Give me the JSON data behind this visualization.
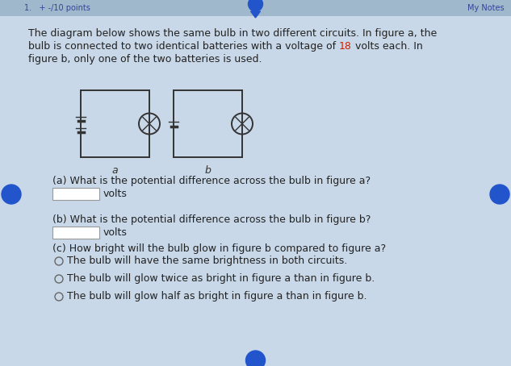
{
  "bg_color": "#c8d8e8",
  "header_bg": "#a0b8cc",
  "header_text": "1.   + -/10 points",
  "header_right": "My Notes",
  "title_line1": "The diagram below shows the same bulb in two different circuits. In figure a, the",
  "title_line2": "bulb is connected to two identical batteries with a voltage of ",
  "voltage": "18",
  "title_line2b": " volts each. In",
  "title_line3": "figure b, only one of the two batteries is used.",
  "voltage_color": "#cc2200",
  "text_color": "#222222",
  "q_a": "(a) What is the potential difference across the bulb in figure a?",
  "q_b": "(b) What is the potential difference across the bulb in figure b?",
  "q_c": "(c) How bright will the bulb glow in figure b compared to figure a?",
  "opt1": "The bulb will have the same brightness in both circuits.",
  "opt2": "The bulb will glow twice as bright in figure a than in figure b.",
  "opt3": "The bulb will glow half as bright in figure a than in figure b.",
  "label_a": "a",
  "label_b": "b",
  "dot_color": "#2255cc",
  "line_color": "#333333",
  "header_text_color": "#334499",
  "radio_color": "#666666"
}
